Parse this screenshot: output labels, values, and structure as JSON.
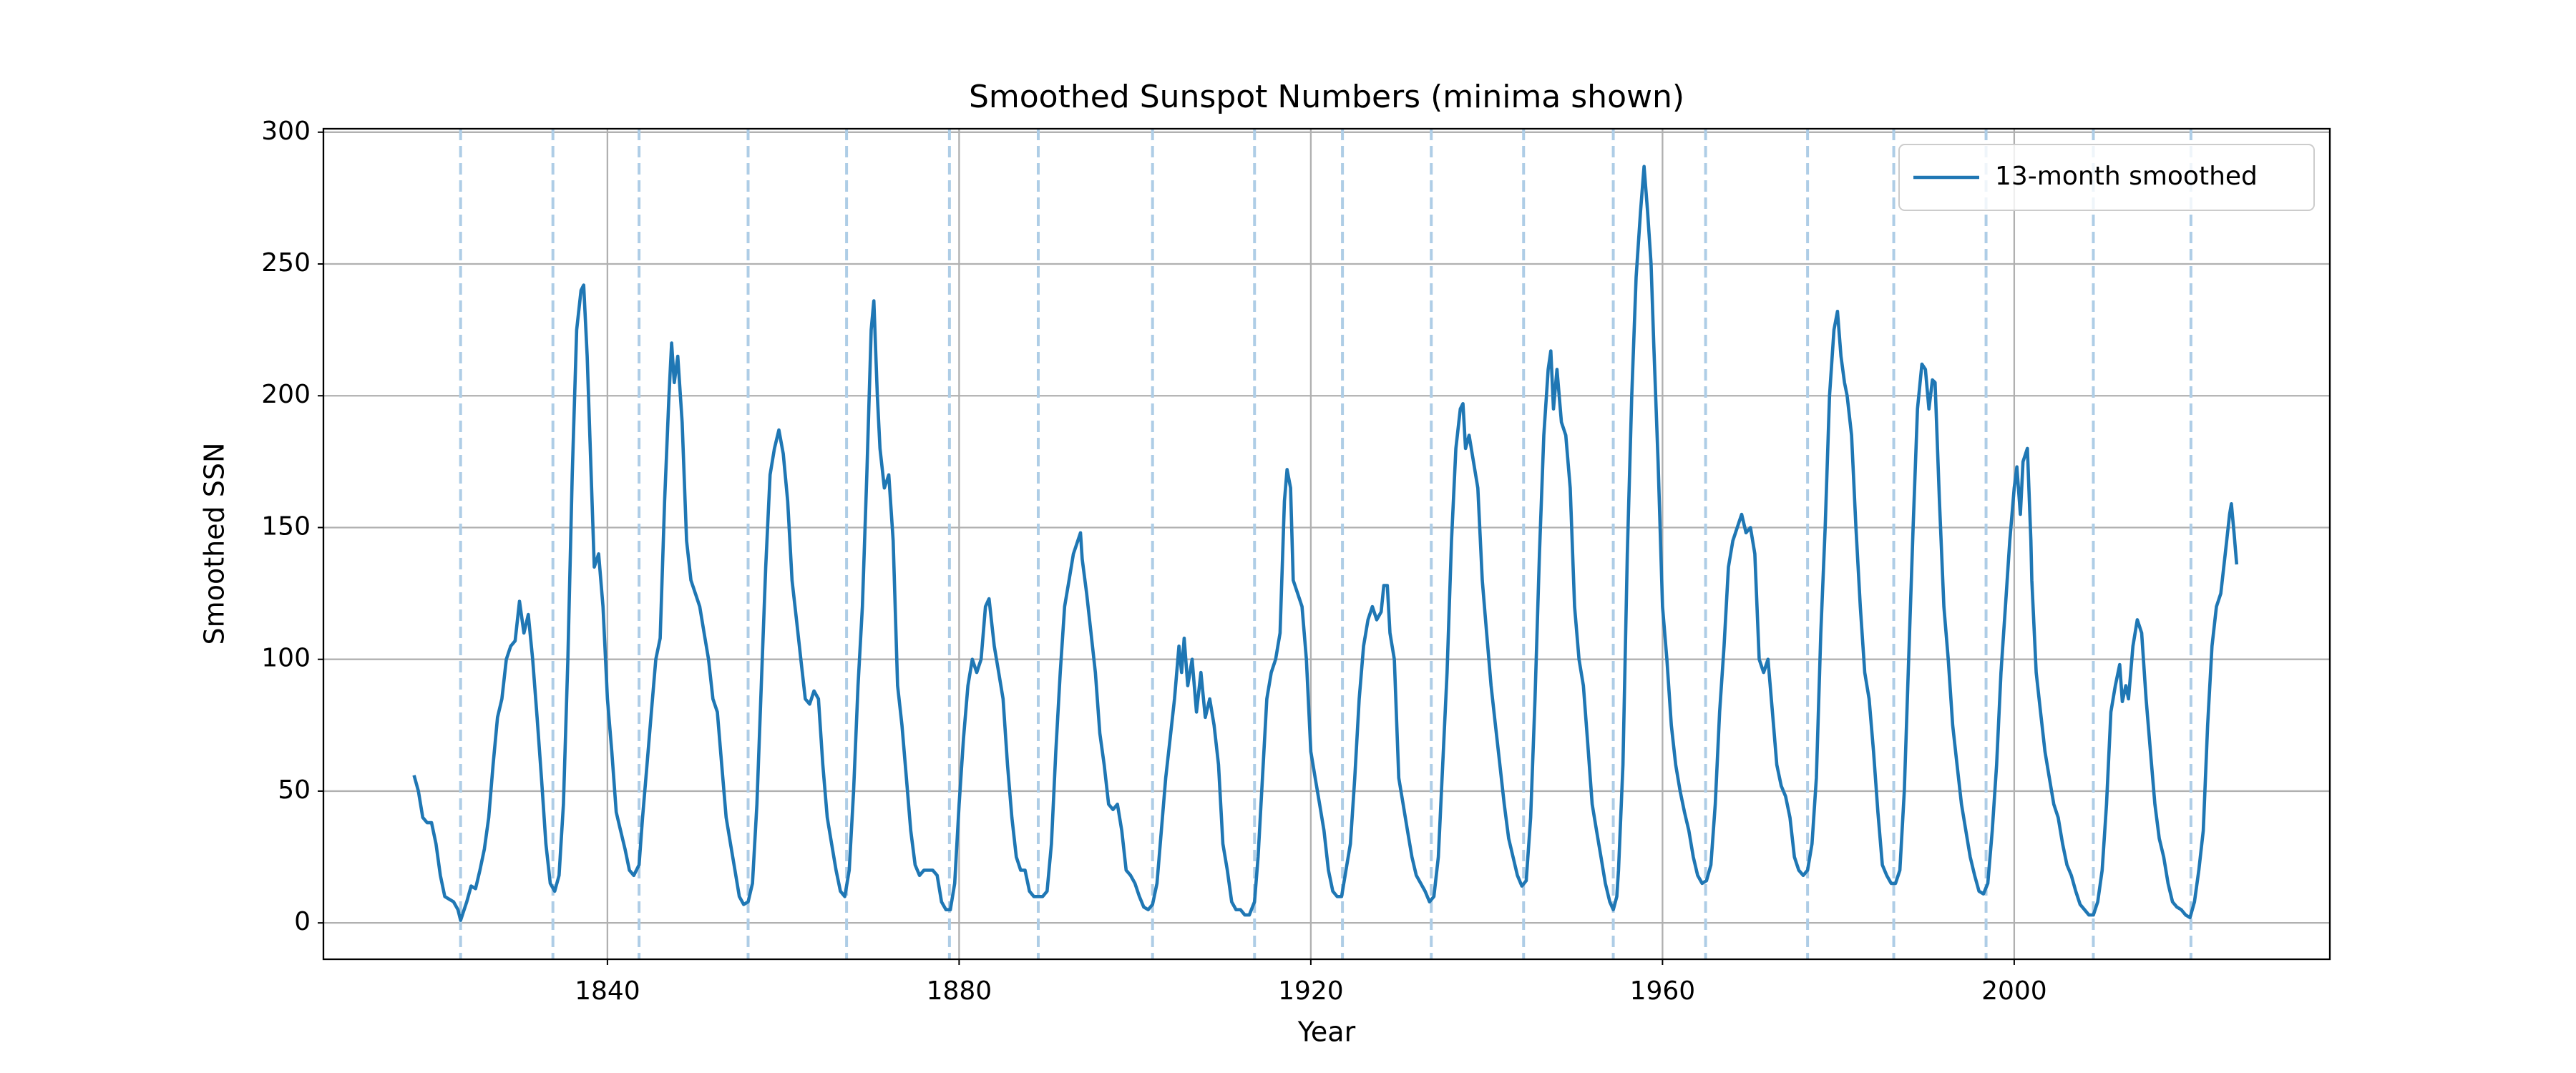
{
  "chart_data": {
    "type": "line",
    "title": "Smoothed Sunspot Numbers (minima shown)",
    "x_label": "Year",
    "y_label": "Smoothed SSN",
    "x": [
      1818.0,
      1818.5,
      1819,
      1819.5,
      1820,
      1820.5,
      1821,
      1821.5,
      1822,
      1822.5,
      1823,
      1823.3,
      1824,
      1824.5,
      1825,
      1825.5,
      1826,
      1826.5,
      1827,
      1827.5,
      1828,
      1828.5,
      1829,
      1829.5,
      1830,
      1830.5,
      1831,
      1831.5,
      1832,
      1832.5,
      1833,
      1833.5,
      1834,
      1834.5,
      1835,
      1835.5,
      1836,
      1836.5,
      1837,
      1837.3,
      1837.7,
      1838,
      1838.5,
      1839,
      1839.5,
      1840,
      1840.5,
      1841,
      1841.5,
      1842,
      1842.5,
      1843,
      1843.6,
      1844,
      1844.5,
      1845,
      1845.5,
      1846,
      1846.5,
      1847,
      1847.3,
      1847.6,
      1848,
      1848.5,
      1849,
      1849.5,
      1850,
      1850.5,
      1851,
      1851.5,
      1852,
      1852.5,
      1853,
      1853.5,
      1854,
      1854.5,
      1855,
      1855.5,
      1856,
      1856.5,
      1857,
      1857.5,
      1858,
      1858.5,
      1859,
      1859.5,
      1860,
      1860.5,
      1861,
      1861.5,
      1862,
      1862.5,
      1863,
      1863.5,
      1864,
      1864.5,
      1865,
      1865.5,
      1866,
      1866.5,
      1867,
      1867.5,
      1868,
      1868.5,
      1869,
      1869.5,
      1870,
      1870.3,
      1870.7,
      1871,
      1871.5,
      1872,
      1872.5,
      1873,
      1873.5,
      1874,
      1874.5,
      1875,
      1875.5,
      1876,
      1876.5,
      1877,
      1877.5,
      1878,
      1878.5,
      1879,
      1879.5,
      1880,
      1880.5,
      1881,
      1881.5,
      1882,
      1882.5,
      1883,
      1883.4,
      1884,
      1884.5,
      1885,
      1885.5,
      1886,
      1886.5,
      1887,
      1887.5,
      1888,
      1888.5,
      1889,
      1889.5,
      1890,
      1890.5,
      1891,
      1891.5,
      1892,
      1892.5,
      1893,
      1893.5,
      1893.8,
      1894,
      1894.5,
      1895,
      1895.5,
      1896,
      1896.5,
      1897,
      1897.5,
      1898,
      1898.5,
      1899,
      1899.5,
      1900,
      1900.5,
      1901,
      1901.5,
      1902,
      1902.5,
      1903,
      1903.5,
      1904,
      1904.5,
      1905,
      1905.3,
      1905.6,
      1906,
      1906.5,
      1907,
      1907.5,
      1908,
      1908.5,
      1909,
      1909.5,
      1910,
      1910.5,
      1911,
      1911.5,
      1912,
      1912.5,
      1913,
      1913.6,
      1914,
      1914.5,
      1915,
      1915.5,
      1916,
      1916.5,
      1917,
      1917.3,
      1917.7,
      1918,
      1918.5,
      1919,
      1919.5,
      1920,
      1920.5,
      1921,
      1921.5,
      1922,
      1922.5,
      1923,
      1923.5,
      1924,
      1924.5,
      1925,
      1925.5,
      1926,
      1926.5,
      1927,
      1927.5,
      1928,
      1928.3,
      1928.7,
      1929,
      1929.5,
      1930,
      1930.5,
      1931,
      1931.5,
      1932,
      1932.5,
      1933,
      1933.5,
      1934,
      1934.5,
      1935,
      1935.5,
      1936,
      1936.5,
      1937,
      1937.3,
      1937.6,
      1938,
      1938.5,
      1939,
      1939.5,
      1940,
      1940.5,
      1941,
      1941.5,
      1942,
      1942.5,
      1943,
      1943.5,
      1944,
      1944.5,
      1945,
      1945.5,
      1946,
      1946.5,
      1947,
      1947.3,
      1947.6,
      1948,
      1948.5,
      1949,
      1949.5,
      1950,
      1950.5,
      1951,
      1951.5,
      1952,
      1952.5,
      1953,
      1953.5,
      1954,
      1954.4,
      1954.8,
      1955,
      1955.5,
      1956,
      1956.5,
      1957,
      1957.5,
      1957.9,
      1958.3,
      1958.7,
      1959,
      1959.5,
      1960,
      1960.5,
      1961,
      1961.5,
      1962,
      1962.5,
      1963,
      1963.5,
      1964,
      1964.5,
      1965,
      1965.5,
      1966,
      1966.5,
      1967,
      1967.5,
      1968,
      1968.5,
      1969,
      1969.5,
      1970,
      1970.5,
      1971,
      1971.5,
      1972,
      1972.5,
      1973,
      1973.5,
      1974,
      1974.5,
      1975,
      1975.5,
      1976,
      1976.5,
      1977,
      1977.5,
      1978,
      1978.5,
      1979,
      1979.5,
      1979.9,
      1980.3,
      1980.7,
      1981,
      1981.5,
      1982,
      1982.5,
      1983,
      1983.5,
      1984,
      1984.5,
      1985,
      1985.5,
      1986,
      1986.5,
      1987,
      1987.5,
      1988,
      1988.5,
      1989,
      1989.5,
      1989.9,
      1990.3,
      1990.7,
      1991,
      1991.5,
      1992,
      1992.5,
      1993,
      1993.5,
      1994,
      1994.5,
      1995,
      1995.5,
      1996,
      1996.5,
      1997,
      1997.5,
      1998,
      1998.5,
      1999,
      1999.5,
      2000,
      2000.3,
      2000.7,
      2001,
      2001.5,
      2001.9,
      2002,
      2002.5,
      2003,
      2003.5,
      2004,
      2004.5,
      2005,
      2005.5,
      2006,
      2006.5,
      2007,
      2007.5,
      2008,
      2008.5,
      2009,
      2009.5,
      2010,
      2010.5,
      2011,
      2011.5,
      2012,
      2012.3,
      2012.7,
      2013,
      2013.5,
      2014,
      2014.5,
      2015,
      2015.5,
      2016,
      2016.5,
      2017,
      2017.5,
      2018,
      2018.5,
      2019,
      2019.5,
      2020,
      2020.5,
      2021,
      2021.5,
      2022,
      2022.5,
      2023,
      2023.5,
      2024,
      2024.5,
      2024.7,
      2025,
      2025.3
    ],
    "series": [
      {
        "name": "13-month smoothed",
        "color": "#1f77b4",
        "values": [
          56,
          50,
          40,
          38,
          38,
          30,
          18,
          10,
          9,
          8,
          5,
          1,
          8,
          14,
          13,
          20,
          28,
          40,
          60,
          78,
          85,
          100,
          105,
          107,
          122,
          110,
          117,
          100,
          78,
          55,
          30,
          15,
          12,
          18,
          45,
          100,
          170,
          225,
          240,
          242,
          215,
          185,
          135,
          140,
          120,
          85,
          65,
          42,
          35,
          28,
          20,
          18,
          22,
          40,
          60,
          80,
          100,
          108,
          160,
          200,
          220,
          205,
          215,
          190,
          145,
          130,
          125,
          120,
          110,
          100,
          85,
          80,
          60,
          40,
          30,
          20,
          10,
          7,
          8,
          15,
          45,
          90,
          135,
          170,
          180,
          187,
          178,
          160,
          130,
          115,
          100,
          85,
          83,
          88,
          85,
          60,
          40,
          30,
          20,
          12,
          10,
          20,
          50,
          90,
          120,
          170,
          225,
          236,
          200,
          180,
          165,
          170,
          145,
          90,
          75,
          55,
          35,
          22,
          18,
          20,
          20,
          20,
          18,
          8,
          5,
          5,
          15,
          45,
          70,
          90,
          100,
          95,
          100,
          120,
          123,
          105,
          95,
          85,
          60,
          40,
          25,
          20,
          20,
          12,
          10,
          10,
          10,
          12,
          30,
          65,
          95,
          120,
          130,
          140,
          145,
          148,
          138,
          125,
          110,
          95,
          72,
          60,
          45,
          43,
          45,
          35,
          20,
          18,
          15,
          10,
          6,
          5,
          7,
          15,
          35,
          55,
          70,
          85,
          105,
          95,
          108,
          90,
          100,
          80,
          95,
          78,
          85,
          75,
          60,
          30,
          20,
          8,
          5,
          5,
          3,
          3,
          8,
          25,
          55,
          85,
          95,
          100,
          110,
          160,
          172,
          165,
          130,
          125,
          120,
          100,
          65,
          55,
          45,
          35,
          20,
          12,
          10,
          10,
          20,
          30,
          55,
          85,
          105,
          115,
          120,
          115,
          118,
          128,
          128,
          110,
          100,
          55,
          45,
          35,
          25,
          18,
          15,
          12,
          8,
          10,
          25,
          60,
          95,
          145,
          180,
          195,
          197,
          180,
          185,
          175,
          165,
          130,
          110,
          90,
          75,
          60,
          45,
          32,
          25,
          18,
          14,
          16,
          40,
          85,
          140,
          185,
          210,
          217,
          195,
          210,
          190,
          185,
          165,
          120,
          100,
          90,
          68,
          45,
          35,
          25,
          15,
          8,
          5,
          10,
          20,
          60,
          140,
          200,
          245,
          270,
          287,
          270,
          250,
          220,
          175,
          120,
          100,
          75,
          60,
          50,
          42,
          35,
          25,
          18,
          15,
          16,
          22,
          45,
          80,
          105,
          135,
          145,
          150,
          155,
          148,
          150,
          140,
          100,
          95,
          100,
          80,
          60,
          52,
          48,
          40,
          25,
          20,
          18,
          20,
          30,
          55,
          110,
          150,
          200,
          225,
          232,
          215,
          205,
          200,
          185,
          150,
          120,
          95,
          85,
          65,
          42,
          22,
          18,
          15,
          15,
          20,
          50,
          100,
          150,
          195,
          212,
          210,
          195,
          206,
          205,
          160,
          120,
          100,
          75,
          60,
          45,
          35,
          25,
          18,
          12,
          11,
          15,
          35,
          60,
          95,
          120,
          145,
          165,
          173,
          155,
          175,
          180,
          145,
          130,
          95,
          80,
          65,
          55,
          45,
          40,
          30,
          22,
          18,
          12,
          7,
          5,
          3,
          3,
          8,
          20,
          45,
          80,
          90,
          98,
          84,
          90,
          85,
          105,
          115,
          110,
          85,
          65,
          45,
          32,
          25,
          15,
          8,
          6,
          5,
          3,
          2,
          8,
          20,
          35,
          75,
          105,
          120,
          125,
          140,
          155,
          159,
          148,
          136
        ]
      }
    ],
    "minima": [
      1823.3,
      1833.8,
      1843.6,
      1856.0,
      1867.2,
      1878.9,
      1889.0,
      1902.0,
      1913.6,
      1923.6,
      1933.7,
      1944.2,
      1954.4,
      1964.9,
      1976.5,
      1986.3,
      1996.8,
      2009.0,
      2020.1
    ],
    "minima_color": "#aecde6",
    "xlim": [
      1807.7,
      2035.9
    ],
    "ylim": [
      -13.8,
      301.3
    ],
    "xticks": [
      1840,
      1880,
      1920,
      1960,
      2000
    ],
    "yticks": [
      0,
      50,
      100,
      150,
      200,
      250,
      300
    ],
    "grid": true,
    "legend": "upper right"
  }
}
